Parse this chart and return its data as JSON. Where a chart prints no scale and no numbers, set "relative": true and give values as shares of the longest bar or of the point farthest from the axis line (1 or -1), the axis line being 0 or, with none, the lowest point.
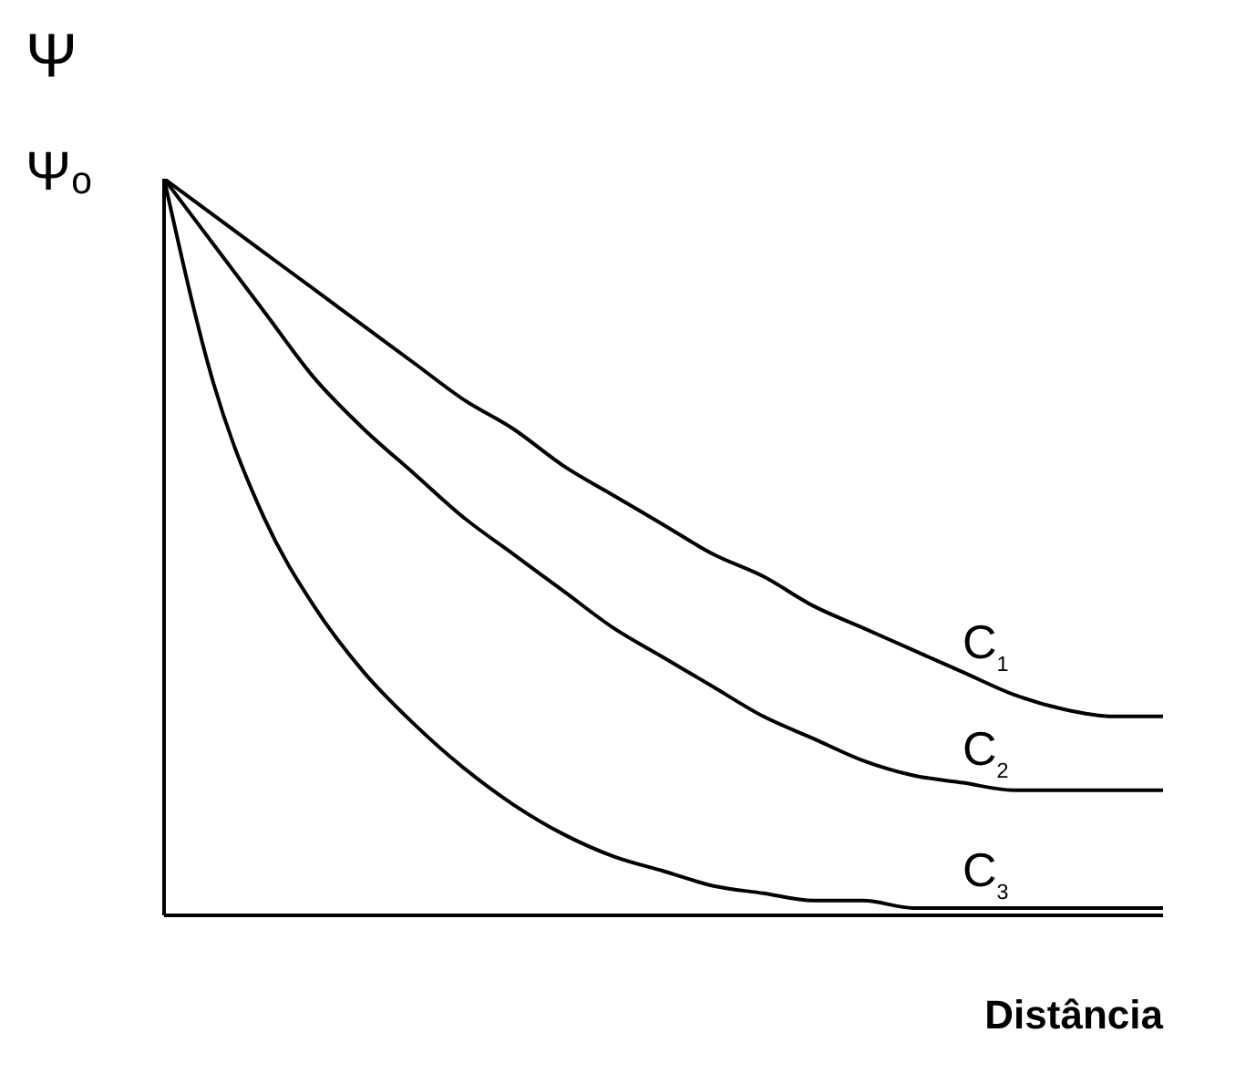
{
  "chart_data": {
    "type": "line",
    "relative": true,
    "xlabel": "Distância",
    "ylabel": "Ψ",
    "annotations": [
      "Ψₒ"
    ],
    "legend": false,
    "marker": "none",
    "grid": false,
    "categories": [
      null,
      null,
      null,
      null,
      null,
      null,
      null,
      null,
      null,
      null,
      null,
      null,
      null,
      null,
      null,
      null,
      null,
      null,
      null,
      null,
      null
    ],
    "series": [
      {
        "name": "C$_{1}$",
        "color": "#000000",
        "values": [
          1,
          0.95,
          0.9,
          0.85,
          0.8,
          0.75,
          0.7,
          0.66,
          0.61,
          0.57,
          0.53,
          0.49,
          0.46,
          0.42,
          0.39,
          0.36,
          0.33,
          0.3,
          0.28,
          0.27,
          0.27
        ]
      },
      {
        "name": "C$_{2}$",
        "color": "#000000",
        "values": [
          1,
          0.91,
          0.82,
          0.73,
          0.66,
          0.6,
          0.54,
          0.49,
          0.44,
          0.39,
          0.35,
          0.31,
          0.27,
          0.24,
          0.21,
          0.19,
          0.18,
          0.17,
          0.17,
          0.17,
          0.17
        ]
      },
      {
        "name": "C$_{3}$",
        "color": "#000000",
        "values": [
          1,
          0.72,
          0.54,
          0.42,
          0.33,
          0.26,
          0.2,
          0.15,
          0.11,
          0.08,
          0.06,
          0.04,
          0.03,
          0.02,
          0.02,
          0.01,
          0.01,
          0.01,
          0.01,
          0.01,
          0.01
        ]
      }
    ]
  }
}
